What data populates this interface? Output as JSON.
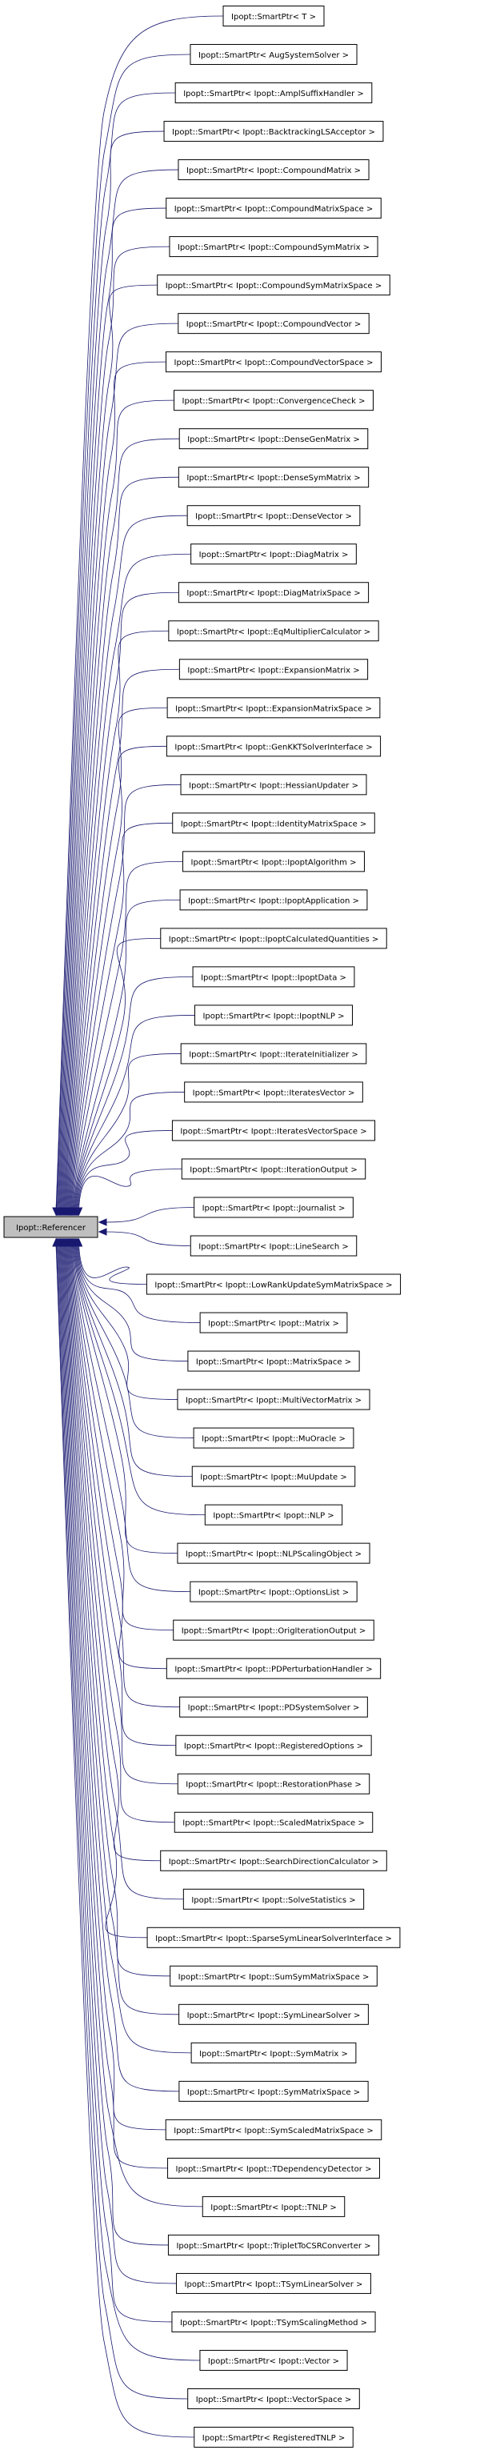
{
  "root": {
    "label": "Ipopt::Referencer",
    "fill": "#bfbfbf"
  },
  "edge_color": "#191970",
  "nodes": [
    "Ipopt::SmartPtr< T >",
    "Ipopt::SmartPtr< AugSystemSolver >",
    "Ipopt::SmartPtr< Ipopt::AmplSuffixHandler >",
    "Ipopt::SmartPtr< Ipopt::BacktrackingLSAcceptor >",
    "Ipopt::SmartPtr< Ipopt::CompoundMatrix >",
    "Ipopt::SmartPtr< Ipopt::CompoundMatrixSpace >",
    "Ipopt::SmartPtr< Ipopt::CompoundSymMatrix >",
    "Ipopt::SmartPtr< Ipopt::CompoundSymMatrixSpace >",
    "Ipopt::SmartPtr< Ipopt::CompoundVector >",
    "Ipopt::SmartPtr< Ipopt::CompoundVectorSpace >",
    "Ipopt::SmartPtr< Ipopt::ConvergenceCheck >",
    "Ipopt::SmartPtr< Ipopt::DenseGenMatrix >",
    "Ipopt::SmartPtr< Ipopt::DenseSymMatrix >",
    "Ipopt::SmartPtr< Ipopt::DenseVector >",
    "Ipopt::SmartPtr< Ipopt::DiagMatrix >",
    "Ipopt::SmartPtr< Ipopt::DiagMatrixSpace >",
    "Ipopt::SmartPtr< Ipopt::EqMultiplierCalculator >",
    "Ipopt::SmartPtr< Ipopt::ExpansionMatrix >",
    "Ipopt::SmartPtr< Ipopt::ExpansionMatrixSpace >",
    "Ipopt::SmartPtr< Ipopt::GenKKTSolverInterface >",
    "Ipopt::SmartPtr< Ipopt::HessianUpdater >",
    "Ipopt::SmartPtr< Ipopt::IdentityMatrixSpace >",
    "Ipopt::SmartPtr< Ipopt::IpoptAlgorithm >",
    "Ipopt::SmartPtr< Ipopt::IpoptApplication >",
    "Ipopt::SmartPtr< Ipopt::IpoptCalculatedQuantities >",
    "Ipopt::SmartPtr< Ipopt::IpoptData >",
    "Ipopt::SmartPtr< Ipopt::IpoptNLP >",
    "Ipopt::SmartPtr< Ipopt::IterateInitializer >",
    "Ipopt::SmartPtr< Ipopt::IteratesVector >",
    "Ipopt::SmartPtr< Ipopt::IteratesVectorSpace >",
    "Ipopt::SmartPtr< Ipopt::IterationOutput >",
    "Ipopt::SmartPtr< Ipopt::Journalist >",
    "Ipopt::SmartPtr< Ipopt::LineSearch >",
    "Ipopt::SmartPtr< Ipopt::LowRankUpdateSymMatrixSpace >",
    "Ipopt::SmartPtr< Ipopt::Matrix >",
    "Ipopt::SmartPtr< Ipopt::MatrixSpace >",
    "Ipopt::SmartPtr< Ipopt::MultiVectorMatrix >",
    "Ipopt::SmartPtr< Ipopt::MuOracle >",
    "Ipopt::SmartPtr< Ipopt::MuUpdate >",
    "Ipopt::SmartPtr< Ipopt::NLP >",
    "Ipopt::SmartPtr< Ipopt::NLPScalingObject >",
    "Ipopt::SmartPtr< Ipopt::OptionsList >",
    "Ipopt::SmartPtr< Ipopt::OrigIterationOutput >",
    "Ipopt::SmartPtr< Ipopt::PDPerturbationHandler >",
    "Ipopt::SmartPtr< Ipopt::PDSystemSolver >",
    "Ipopt::SmartPtr< Ipopt::RegisteredOptions >",
    "Ipopt::SmartPtr< Ipopt::RestorationPhase >",
    "Ipopt::SmartPtr< Ipopt::ScaledMatrixSpace >",
    "Ipopt::SmartPtr< Ipopt::SearchDirectionCalculator >",
    "Ipopt::SmartPtr< Ipopt::SolveStatistics >",
    "Ipopt::SmartPtr< Ipopt::SparseSymLinearSolverInterface >",
    "Ipopt::SmartPtr< Ipopt::SumSymMatrixSpace >",
    "Ipopt::SmartPtr< Ipopt::SymLinearSolver >",
    "Ipopt::SmartPtr< Ipopt::SymMatrix >",
    "Ipopt::SmartPtr< Ipopt::SymMatrixSpace >",
    "Ipopt::SmartPtr< Ipopt::SymScaledMatrixSpace >",
    "Ipopt::SmartPtr< Ipopt::TDependencyDetector >",
    "Ipopt::SmartPtr< Ipopt::TNLP >",
    "Ipopt::SmartPtr< Ipopt::TripletToCSRConverter >",
    "Ipopt::SmartPtr< Ipopt::TSymLinearSolver >",
    "Ipopt::SmartPtr< Ipopt::TSymScalingMethod >",
    "Ipopt::SmartPtr< Ipopt::Vector >",
    "Ipopt::SmartPtr< Ipopt::VectorSpace >",
    "Ipopt::SmartPtr< RegisteredTNLP >"
  ]
}
